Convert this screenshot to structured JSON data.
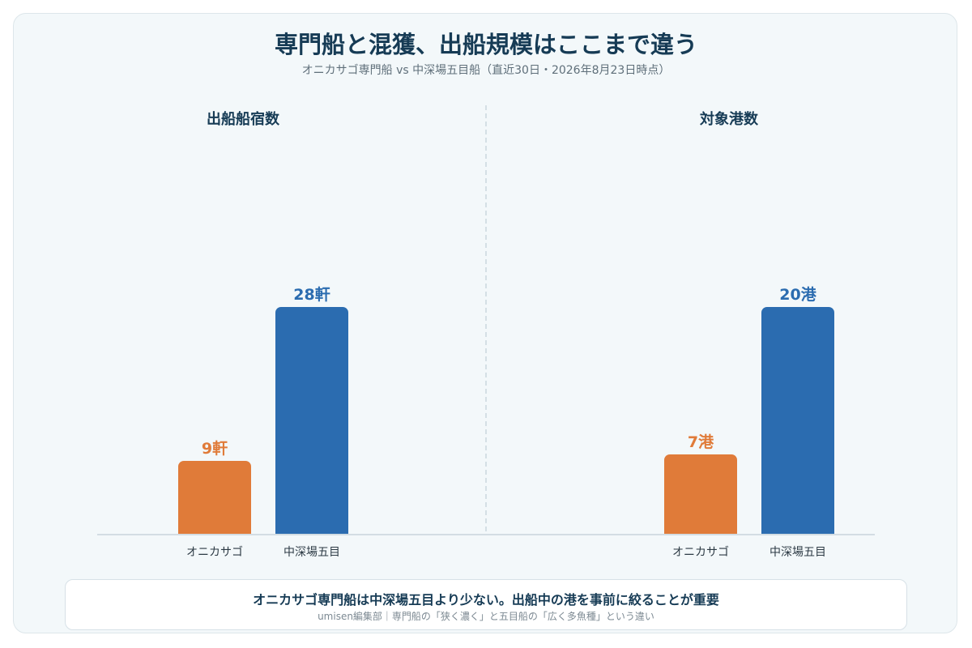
{
  "title": "専門船と混獲、出船規模はここまで違う",
  "subtitle": "オニカサゴ専門船 vs 中深場五目船（直近30日・2026年8月23日時点）",
  "colors": {
    "onikasago": "#e07b39",
    "gomoku": "#2b6cb0",
    "title": "#163b55"
  },
  "chart_data": [
    {
      "type": "bar",
      "title": "出船船宿数",
      "categories": [
        "オニカサゴ",
        "中深場五目"
      ],
      "values": [
        9,
        28
      ],
      "value_labels": [
        "9軒",
        "28軒"
      ],
      "unit": "軒",
      "ylim": [
        0,
        30
      ],
      "grid": false,
      "legend": "none",
      "bar_colors": [
        "#e07b39",
        "#2b6cb0"
      ]
    },
    {
      "type": "bar",
      "title": "対象港数",
      "categories": [
        "オニカサゴ",
        "中深場五目"
      ],
      "values": [
        7,
        20
      ],
      "value_labels": [
        "7港",
        "20港"
      ],
      "unit": "港",
      "ylim": [
        0,
        21.4
      ],
      "grid": false,
      "legend": "none",
      "bar_colors": [
        "#e07b39",
        "#2b6cb0"
      ]
    }
  ],
  "footer": {
    "main": "オニカサゴ専門船は中深場五目より少ない。出船中の港を事前に絞ることが重要",
    "sub": "umisen編集部｜専門船の「狭く濃く」と五目船の「広く多魚種」という違い"
  }
}
